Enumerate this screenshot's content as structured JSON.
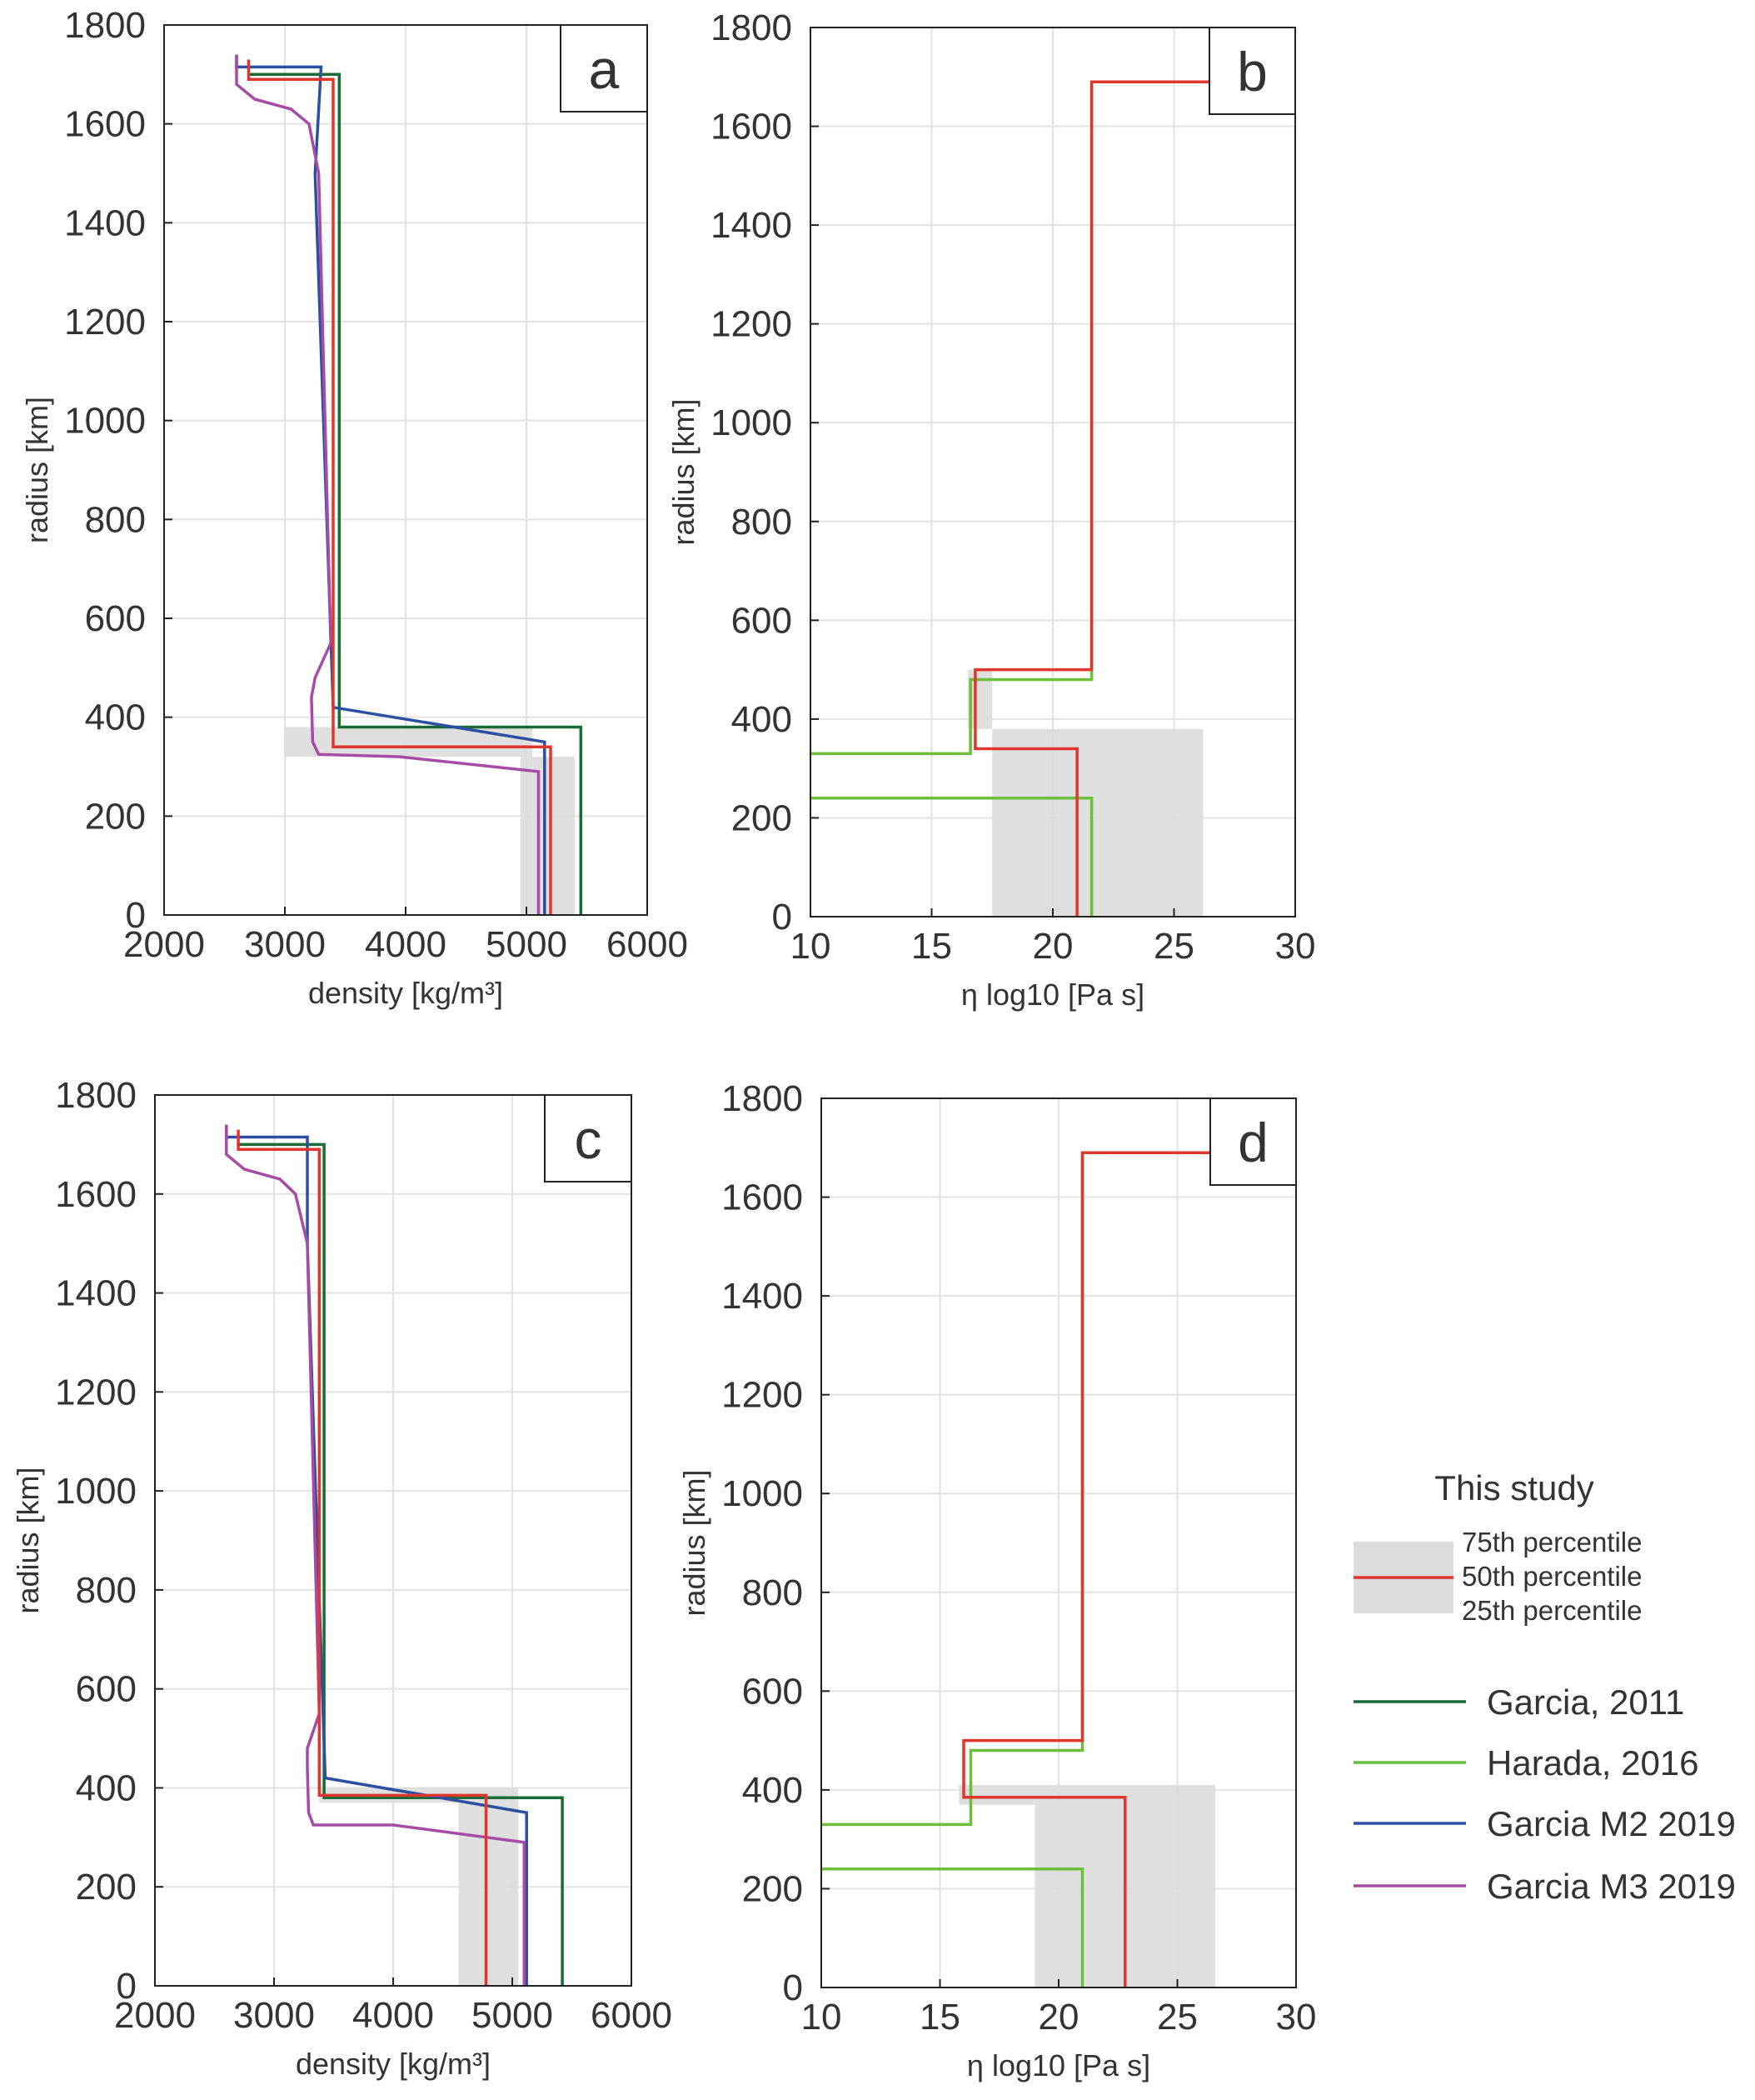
{
  "chart_data": [
    {
      "type": "line",
      "panel": "a",
      "xlabel": "density [kg/m³]",
      "ylabel": "radius [km]",
      "xlim": [
        2000,
        6000
      ],
      "ylim": [
        0,
        1800
      ],
      "xticks": [
        2000,
        3000,
        4000,
        5000,
        6000
      ],
      "yticks": [
        0,
        200,
        400,
        600,
        800,
        1000,
        1200,
        1400,
        1600,
        1800
      ],
      "grid": true,
      "band": [
        {
          "x": [
            3000,
            5050
          ],
          "y": [
            320,
            380
          ]
        },
        {
          "x": [
            4950,
            5400
          ],
          "y": [
            0,
            320
          ]
        }
      ],
      "series": [
        {
          "name": "Garcia, 2011",
          "color": "#1a6b35",
          "points": [
            [
              2700,
              1700
            ],
            [
              3450,
              1700
            ],
            [
              3450,
              380
            ],
            [
              5450,
              380
            ],
            [
              5450,
              0
            ]
          ]
        },
        {
          "name": "Harada, 2016",
          "color": "#6bbf3a",
          "points": []
        },
        {
          "name": "Garcia M2 2019",
          "color": "#2c4fa0",
          "points": [
            [
              2600,
              1740
            ],
            [
              2600,
              1715
            ],
            [
              3300,
              1715
            ],
            [
              3250,
              1500
            ],
            [
              3400,
              420
            ],
            [
              5150,
              350
            ],
            [
              5150,
              0
            ]
          ]
        },
        {
          "name": "Garcia M3 2019",
          "color": "#a64ca6",
          "points": [
            [
              2600,
              1740
            ],
            [
              2600,
              1680
            ],
            [
              2750,
              1650
            ],
            [
              3050,
              1630
            ],
            [
              3200,
              1600
            ],
            [
              3280,
              1500
            ],
            [
              3380,
              550
            ],
            [
              3250,
              480
            ],
            [
              3220,
              440
            ],
            [
              3230,
              350
            ],
            [
              3280,
              325
            ],
            [
              3950,
              320
            ],
            [
              5100,
              290
            ],
            [
              5100,
              0
            ]
          ]
        },
        {
          "name": "50th percentile",
          "color": "#e0362e",
          "points": [
            [
              2700,
              1730
            ],
            [
              2700,
              1690
            ],
            [
              3400,
              1690
            ],
            [
              3400,
              500
            ],
            [
              3400,
              340
            ],
            [
              5200,
              340
            ],
            [
              5200,
              0
            ]
          ]
        }
      ]
    },
    {
      "type": "line",
      "panel": "b",
      "xlabel": "η log10 [Pa s]",
      "ylabel": "radius [km]",
      "xlim": [
        10,
        30
      ],
      "ylim": [
        0,
        1800
      ],
      "xticks": [
        10,
        15,
        20,
        25,
        30
      ],
      "yticks": [
        0,
        200,
        400,
        600,
        800,
        1000,
        1200,
        1400,
        1600,
        1800
      ],
      "grid": true,
      "band": [
        {
          "x": [
            16.5,
            17.5
          ],
          "y": [
            380,
            500
          ]
        },
        {
          "x": [
            17.5,
            26.2
          ],
          "y": [
            0,
            380
          ]
        }
      ],
      "series": [
        {
          "name": "Harada, 2016",
          "color": "#6bbf3a",
          "points": [
            [
              10,
              330
            ],
            [
              16.6,
              330
            ],
            [
              16.6,
              480
            ],
            [
              21.6,
              480
            ],
            [
              21.6,
              1690
            ]
          ]
        },
        {
          "name": "Harada, 2016 (lower)",
          "color": "#6bbf3a",
          "points": [
            [
              10,
              240
            ],
            [
              21.6,
              240
            ],
            [
              21.6,
              0
            ]
          ]
        },
        {
          "name": "50th percentile",
          "color": "#e0362e",
          "points": [
            [
              30,
              1690
            ],
            [
              21.6,
              1690
            ],
            [
              21.6,
              500
            ],
            [
              16.8,
              500
            ],
            [
              16.8,
              340
            ],
            [
              21.0,
              340
            ],
            [
              21.0,
              0
            ]
          ]
        }
      ]
    },
    {
      "type": "line",
      "panel": "c",
      "xlabel": "density [kg/m³]",
      "ylabel": "radius [km]",
      "xlim": [
        2000,
        6000
      ],
      "ylim": [
        0,
        1800
      ],
      "xticks": [
        2000,
        3000,
        4000,
        5000,
        6000
      ],
      "yticks": [
        0,
        200,
        400,
        600,
        800,
        1000,
        1200,
        1400,
        1600,
        1800
      ],
      "grid": true,
      "band": [
        {
          "x": [
            3380,
            5050
          ],
          "y": [
            370,
            400
          ]
        },
        {
          "x": [
            4550,
            5050
          ],
          "y": [
            0,
            370
          ]
        }
      ],
      "series": [
        {
          "name": "Garcia, 2011",
          "color": "#1a6b35",
          "points": [
            [
              2700,
              1700
            ],
            [
              3420,
              1700
            ],
            [
              3420,
              380
            ],
            [
              5420,
              380
            ],
            [
              5420,
              0
            ]
          ]
        },
        {
          "name": "Garcia M2 2019",
          "color": "#2c4fa0",
          "points": [
            [
              2600,
              1740
            ],
            [
              2600,
              1715
            ],
            [
              3280,
              1715
            ],
            [
              3280,
              1500
            ],
            [
              3430,
              420
            ],
            [
              5120,
              350
            ],
            [
              5120,
              0
            ]
          ]
        },
        {
          "name": "Garcia M3 2019",
          "color": "#a64ca6",
          "points": [
            [
              2600,
              1740
            ],
            [
              2600,
              1680
            ],
            [
              2750,
              1650
            ],
            [
              3050,
              1630
            ],
            [
              3180,
              1600
            ],
            [
              3280,
              1500
            ],
            [
              3380,
              550
            ],
            [
              3280,
              480
            ],
            [
              3280,
              440
            ],
            [
              3290,
              350
            ],
            [
              3330,
              325
            ],
            [
              4000,
              325
            ],
            [
              5100,
              290
            ],
            [
              5100,
              0
            ]
          ]
        },
        {
          "name": "50th percentile",
          "color": "#e0362e",
          "points": [
            [
              2700,
              1730
            ],
            [
              2700,
              1690
            ],
            [
              3380,
              1690
            ],
            [
              3380,
              500
            ],
            [
              3380,
              385
            ],
            [
              4780,
              385
            ],
            [
              4780,
              0
            ]
          ]
        }
      ]
    },
    {
      "type": "line",
      "panel": "d",
      "xlabel": "η log10 [Pa s]",
      "ylabel": "radius [km]",
      "xlim": [
        10,
        30
      ],
      "ylim": [
        0,
        1800
      ],
      "xticks": [
        10,
        15,
        20,
        25,
        30
      ],
      "yticks": [
        0,
        200,
        400,
        600,
        800,
        1000,
        1200,
        1400,
        1600,
        1800
      ],
      "grid": true,
      "band": [
        {
          "x": [
            15.8,
            19.0
          ],
          "y": [
            370,
            410
          ]
        },
        {
          "x": [
            19.0,
            26.6
          ],
          "y": [
            0,
            410
          ]
        }
      ],
      "series": [
        {
          "name": "Harada, 2016",
          "color": "#6bbf3a",
          "points": [
            [
              10,
              330
            ],
            [
              16.3,
              330
            ],
            [
              16.3,
              480
            ],
            [
              21.0,
              480
            ],
            [
              21.0,
              1690
            ]
          ]
        },
        {
          "name": "Harada, 2016 (lower)",
          "color": "#6bbf3a",
          "points": [
            [
              10,
              240
            ],
            [
              21.0,
              240
            ],
            [
              21.0,
              0
            ]
          ]
        },
        {
          "name": "50th percentile",
          "color": "#e0362e",
          "points": [
            [
              30,
              1690
            ],
            [
              21.0,
              1690
            ],
            [
              21.0,
              500
            ],
            [
              16.0,
              500
            ],
            [
              16.0,
              385
            ],
            [
              22.8,
              385
            ],
            [
              22.8,
              0
            ]
          ]
        }
      ]
    }
  ],
  "legend": {
    "title": "This study",
    "band_labels": {
      "top": "75th percentile",
      "mid": "50th percentile",
      "bottom": "25th percentile"
    },
    "items": [
      {
        "label": "Garcia, 2011",
        "color": "#1a6b35"
      },
      {
        "label": "Harada, 2016",
        "color": "#6bbf3a"
      },
      {
        "label": "Garcia M2 2019",
        "color": "#2c4fa0"
      },
      {
        "label": "Garcia M3 2019",
        "color": "#a64ca6"
      }
    ]
  }
}
